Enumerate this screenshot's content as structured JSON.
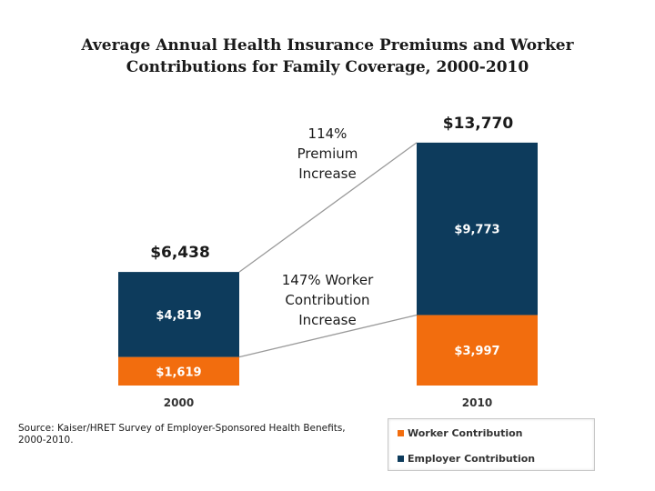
{
  "title_line1": "Average Annual Health Insurance Premiums and Worker",
  "title_line2": "Contributions for Family Coverage, 2000-2010",
  "colors": {
    "worker": "#f26d0e",
    "employer": "#0d3b5c",
    "lines": "#9a9a9a"
  },
  "chart_data": {
    "type": "bar",
    "stacked": true,
    "categories": [
      "2000",
      "2010"
    ],
    "series": [
      {
        "name": "Worker Contribution",
        "values": [
          1619,
          3997
        ],
        "labels": [
          "$1,619",
          "$3,997"
        ]
      },
      {
        "name": "Employer Contribution",
        "values": [
          4819,
          9773
        ],
        "labels": [
          "$4,819",
          "$9,773"
        ]
      }
    ],
    "totals": [
      6438,
      13770
    ],
    "total_labels": [
      "$6,438",
      "$13,770"
    ],
    "ylim": [
      0,
      14000
    ],
    "annotations": {
      "premium": [
        "114%",
        "Premium",
        "Increase"
      ],
      "worker": [
        "147% Worker",
        "Contribution",
        "Increase"
      ]
    },
    "legend": [
      "Worker Contribution",
      "Employer Contribution"
    ],
    "legend_position": "bottom-right"
  },
  "source": "Source:  Kaiser/HRET Survey of Employer-Sponsored Health Benefits, 2000-2010."
}
